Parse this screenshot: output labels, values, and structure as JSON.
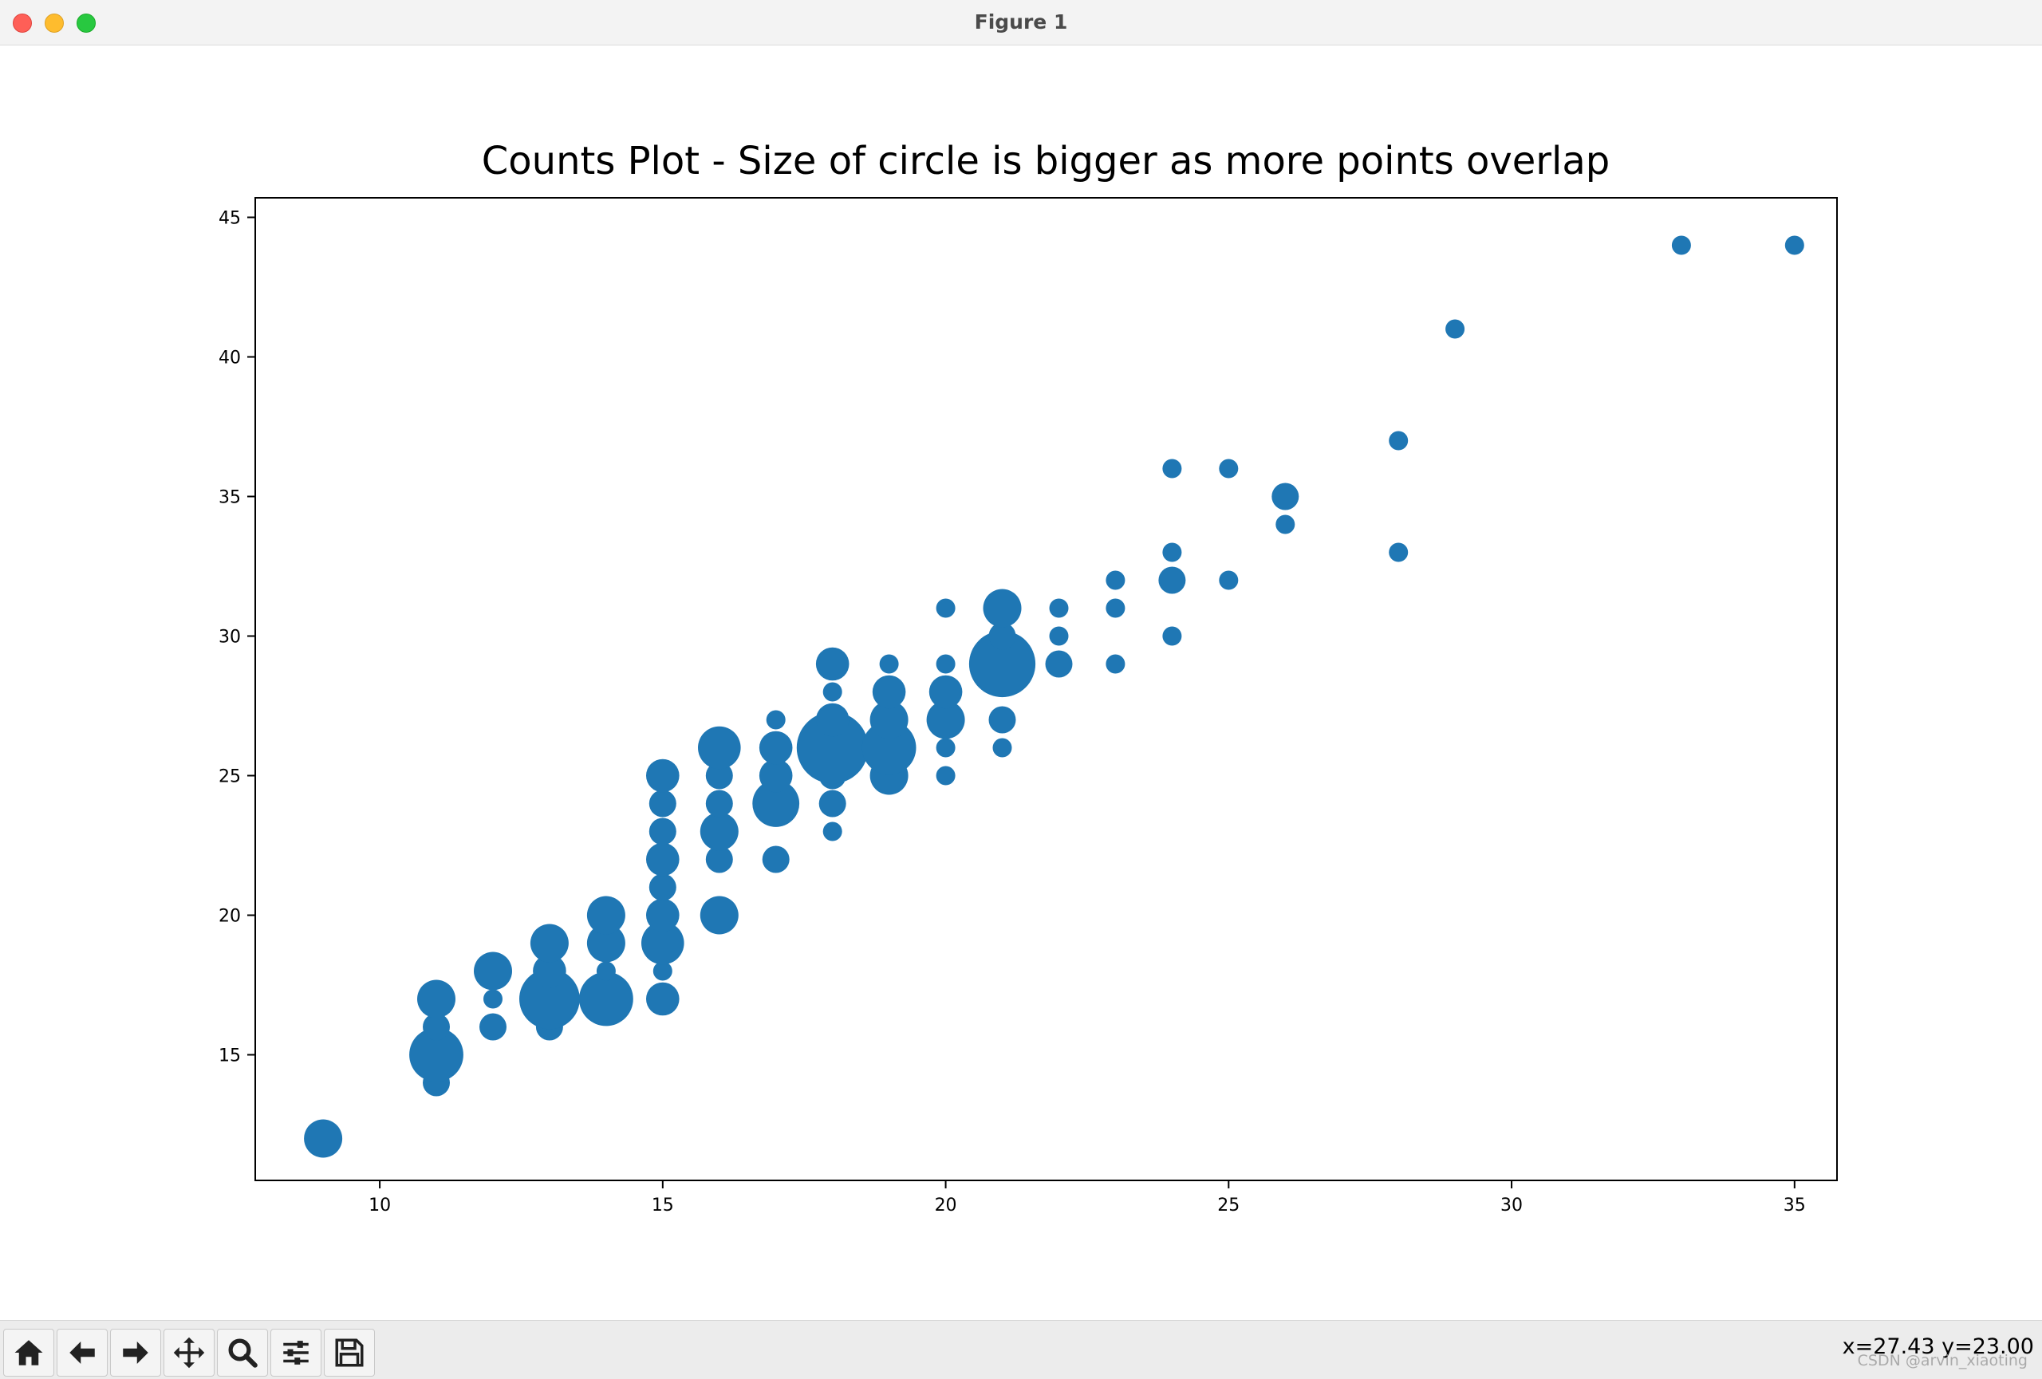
{
  "window": {
    "title": "Figure 1"
  },
  "toolbar": {
    "buttons": [
      {
        "name": "home-button",
        "icon": "home-icon"
      },
      {
        "name": "back-button",
        "icon": "arrow-left-icon"
      },
      {
        "name": "forward-button",
        "icon": "arrow-right-icon"
      },
      {
        "name": "pan-button",
        "icon": "move-icon"
      },
      {
        "name": "zoom-button",
        "icon": "magnifier-icon"
      },
      {
        "name": "configure-subplots-button",
        "icon": "sliders-icon"
      },
      {
        "name": "save-button",
        "icon": "floppy-disk-icon"
      }
    ],
    "coords": "x=27.43 y=23.00",
    "watermark": "CSDN @arvin_xiaoting"
  },
  "chart_data": {
    "type": "scatter",
    "title": "Counts Plot - Size of circle is bigger as more points overlap",
    "xlabel": "",
    "ylabel": "",
    "xlim": [
      7.8,
      35.75
    ],
    "ylim": [
      10.5,
      45.7
    ],
    "xticks": [
      10,
      15,
      20,
      25,
      30,
      35
    ],
    "yticks": [
      15,
      20,
      25,
      30,
      35,
      40,
      45
    ],
    "grid": false,
    "color": "#1f77b4",
    "note_on_counts": "c = number of overlapping points at (x, y)",
    "points": [
      {
        "x": 9,
        "y": 12,
        "c": 2
      },
      {
        "x": 11,
        "y": 14,
        "c": 1
      },
      {
        "x": 11,
        "y": 15,
        "c": 4
      },
      {
        "x": 11,
        "y": 16,
        "c": 1
      },
      {
        "x": 11,
        "y": 17,
        "c": 2
      },
      {
        "x": 12,
        "y": 16,
        "c": 1
      },
      {
        "x": 12,
        "y": 17,
        "c": 0.5
      },
      {
        "x": 12,
        "y": 18,
        "c": 2
      },
      {
        "x": 13,
        "y": 16,
        "c": 1
      },
      {
        "x": 13,
        "y": 17,
        "c": 5
      },
      {
        "x": 13,
        "y": 18,
        "c": 1.5
      },
      {
        "x": 13,
        "y": 19,
        "c": 2
      },
      {
        "x": 14,
        "y": 17,
        "c": 4
      },
      {
        "x": 14,
        "y": 18,
        "c": 0.5
      },
      {
        "x": 14,
        "y": 19,
        "c": 2
      },
      {
        "x": 14,
        "y": 20,
        "c": 2
      },
      {
        "x": 15,
        "y": 17,
        "c": 1.5
      },
      {
        "x": 15,
        "y": 18,
        "c": 0.5
      },
      {
        "x": 15,
        "y": 19,
        "c": 2.5
      },
      {
        "x": 15,
        "y": 20,
        "c": 1.5
      },
      {
        "x": 15,
        "y": 21,
        "c": 1
      },
      {
        "x": 15,
        "y": 22,
        "c": 1.5
      },
      {
        "x": 15,
        "y": 23,
        "c": 1
      },
      {
        "x": 15,
        "y": 24,
        "c": 1
      },
      {
        "x": 15,
        "y": 25,
        "c": 1.5
      },
      {
        "x": 16,
        "y": 20,
        "c": 2
      },
      {
        "x": 16,
        "y": 22,
        "c": 1
      },
      {
        "x": 16,
        "y": 23,
        "c": 2
      },
      {
        "x": 16,
        "y": 24,
        "c": 1
      },
      {
        "x": 16,
        "y": 25,
        "c": 1
      },
      {
        "x": 16,
        "y": 26,
        "c": 2.5
      },
      {
        "x": 17,
        "y": 22,
        "c": 1
      },
      {
        "x": 17,
        "y": 24,
        "c": 3
      },
      {
        "x": 17,
        "y": 25,
        "c": 1.5
      },
      {
        "x": 17,
        "y": 26,
        "c": 1.5
      },
      {
        "x": 17,
        "y": 27,
        "c": 0.5
      },
      {
        "x": 18,
        "y": 23,
        "c": 0.5
      },
      {
        "x": 18,
        "y": 24,
        "c": 1
      },
      {
        "x": 18,
        "y": 25,
        "c": 1
      },
      {
        "x": 18,
        "y": 26,
        "c": 7
      },
      {
        "x": 18,
        "y": 27,
        "c": 1.5
      },
      {
        "x": 18,
        "y": 28,
        "c": 0.5
      },
      {
        "x": 18,
        "y": 29,
        "c": 1.5
      },
      {
        "x": 19,
        "y": 25,
        "c": 2
      },
      {
        "x": 19,
        "y": 26,
        "c": 4
      },
      {
        "x": 19,
        "y": 27,
        "c": 2
      },
      {
        "x": 19,
        "y": 28,
        "c": 1.5
      },
      {
        "x": 19,
        "y": 29,
        "c": 0.5
      },
      {
        "x": 20,
        "y": 25,
        "c": 0.5
      },
      {
        "x": 20,
        "y": 26,
        "c": 0.5
      },
      {
        "x": 20,
        "y": 27,
        "c": 2
      },
      {
        "x": 20,
        "y": 28,
        "c": 1.5
      },
      {
        "x": 20,
        "y": 29,
        "c": 0.5
      },
      {
        "x": 20,
        "y": 31,
        "c": 0.5
      },
      {
        "x": 21,
        "y": 26,
        "c": 0.5
      },
      {
        "x": 21,
        "y": 27,
        "c": 1
      },
      {
        "x": 21,
        "y": 29,
        "c": 6
      },
      {
        "x": 21,
        "y": 30,
        "c": 1
      },
      {
        "x": 21,
        "y": 31,
        "c": 2
      },
      {
        "x": 22,
        "y": 29,
        "c": 1
      },
      {
        "x": 22,
        "y": 30,
        "c": 0.5
      },
      {
        "x": 22,
        "y": 31,
        "c": 0.5
      },
      {
        "x": 23,
        "y": 29,
        "c": 0.5
      },
      {
        "x": 23,
        "y": 31,
        "c": 0.5
      },
      {
        "x": 23,
        "y": 32,
        "c": 0.5
      },
      {
        "x": 24,
        "y": 30,
        "c": 0.5
      },
      {
        "x": 24,
        "y": 32,
        "c": 1
      },
      {
        "x": 24,
        "y": 33,
        "c": 0.5
      },
      {
        "x": 24,
        "y": 36,
        "c": 0.5
      },
      {
        "x": 25,
        "y": 32,
        "c": 0.5
      },
      {
        "x": 25,
        "y": 36,
        "c": 0.5
      },
      {
        "x": 26,
        "y": 34,
        "c": 0.5
      },
      {
        "x": 26,
        "y": 35,
        "c": 1
      },
      {
        "x": 28,
        "y": 33,
        "c": 0.5
      },
      {
        "x": 28,
        "y": 37,
        "c": 0.5
      },
      {
        "x": 29,
        "y": 41,
        "c": 0.5
      },
      {
        "x": 33,
        "y": 44,
        "c": 0.5
      },
      {
        "x": 35,
        "y": 44,
        "c": 0.5
      }
    ]
  }
}
